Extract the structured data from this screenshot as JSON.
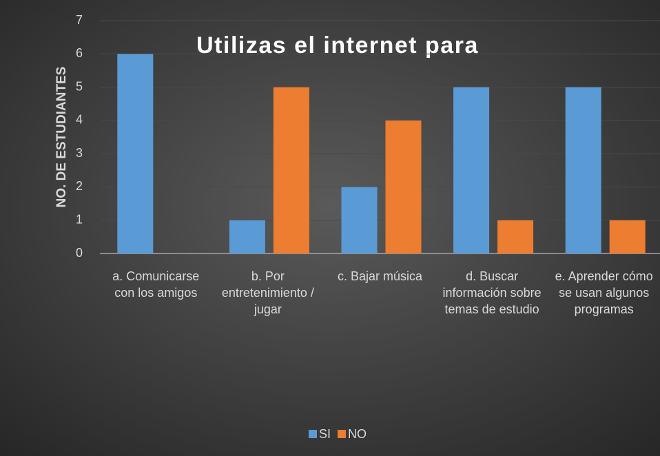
{
  "chart_data": {
    "type": "bar",
    "title": "Utilizas el internet para",
    "y_label": "NO. DE ESTUDIANTES",
    "categories": [
      "a. Comunicarse con los amigos",
      "b. Por entretenimiento / jugar",
      "c. Bajar música",
      "d. Buscar información sobre temas de estudio",
      "e. Aprender cómo se usan algunos programas"
    ],
    "series": [
      {
        "name": "SI",
        "color": "#5b9bd5",
        "values": [
          6,
          1,
          2,
          5,
          5
        ]
      },
      {
        "name": "NO",
        "color": "#ed7d31",
        "values": [
          0,
          5,
          4,
          1,
          1
        ]
      }
    ],
    "ylim": [
      0,
      7
    ],
    "yticks": [
      0,
      1,
      2,
      3,
      4,
      5,
      6,
      7
    ],
    "grid": true,
    "legend": "bottom"
  }
}
